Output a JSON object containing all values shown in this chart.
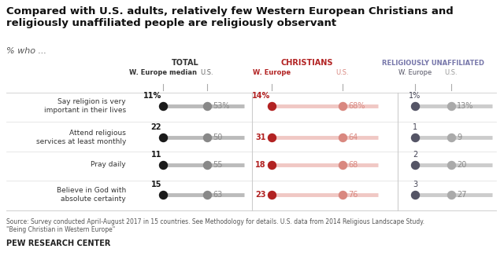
{
  "title": "Compared with U.S. adults, relatively few Western European Christians and\nreligiously unaffiliated people are religiously observant",
  "subtitle": "% who ...",
  "source": "Source: Survey conducted April-August 2017 in 15 countries. See Methodology for details. U.S. data from 2014 Religious Landscape Study.\n\"Being Christian in Western Europe\"",
  "footer": "PEW RESEARCH CENTER",
  "categories": [
    "Say religion is very\nimportant in their lives",
    "Attend religious\nservices at least monthly",
    "Pray daily",
    "Believe in God with\nabsolute certainty"
  ],
  "total": {
    "label": "TOTAL",
    "col1_label": "W. Europe median",
    "col2_label": "U.S.",
    "we": [
      11,
      22,
      11,
      15
    ],
    "us": [
      53,
      50,
      55,
      63
    ],
    "dot_color_we": "#1a1a1a",
    "dot_color_us": "#888888",
    "line_color": "#bbbbbb",
    "label_color_we": "#1a1a1a",
    "label_color_us": "#888888"
  },
  "christians": {
    "label": "CHRISTIANS",
    "col1_label": "W. Europe",
    "col2_label": "U.S.",
    "we": [
      14,
      31,
      18,
      23
    ],
    "us": [
      68,
      64,
      68,
      76
    ],
    "dot_color_we": "#b22222",
    "dot_color_us": "#d98880",
    "line_color": "#f0c8c4",
    "label_color_we": "#b22222",
    "label_color_us": "#d98880"
  },
  "unaffiliated": {
    "label": "RELIGIOUSLY UNAFFILIATED",
    "col1_label": "W. Europe",
    "col2_label": "U.S.",
    "we": [
      1,
      1,
      2,
      3
    ],
    "us": [
      13,
      9,
      20,
      27
    ],
    "dot_color_we": "#555566",
    "dot_color_us": "#aaaaaa",
    "line_color": "#cccccc",
    "label_color_we": "#444455",
    "label_color_us": "#888888"
  },
  "header_colors": {
    "total": "#333333",
    "christians": "#b22222",
    "unaffiliated": "#7777aa"
  }
}
